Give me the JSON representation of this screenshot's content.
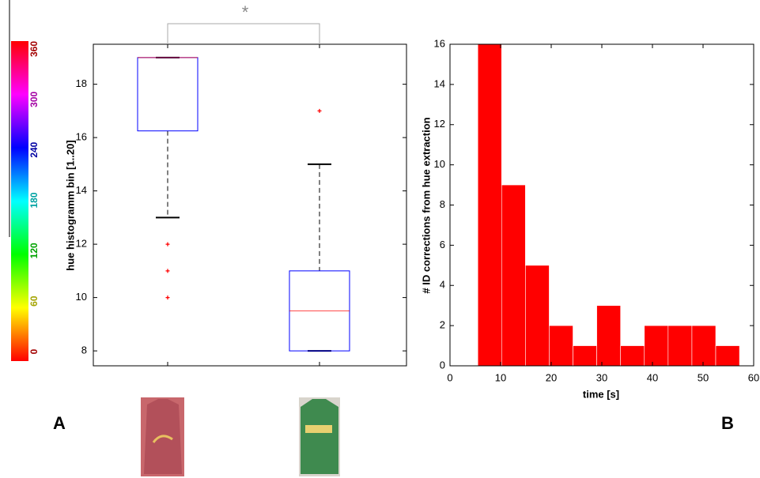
{
  "chart_data": [
    {
      "type": "box",
      "panel_label": "A",
      "ylabel": "hue histogramm bin [1..20]",
      "categories": [
        null,
        null
      ],
      "boxes": [
        {
          "q1": 16.25,
          "median": 19,
          "q3": 19,
          "whisker_low": 13,
          "whisker_high": 19,
          "outliers": [
            12,
            11,
            10
          ]
        },
        {
          "q1": 8,
          "median": 9.5,
          "q3": 11,
          "whisker_low": 8,
          "whisker_high": 15,
          "outliers": [
            17
          ]
        }
      ],
      "box_color": "#0000ff",
      "median_color": "#ff0000",
      "ylim": [
        7.44,
        19.5
      ],
      "yticks": [
        8,
        10,
        12,
        14,
        16,
        18
      ],
      "significance": "*",
      "colorbar": {
        "range": [
          0,
          360
        ],
        "ticks": [
          0,
          60,
          120,
          180,
          240,
          300,
          360
        ]
      }
    },
    {
      "type": "histogram",
      "panel_label": "B",
      "xlabel": "time [s]",
      "ylabel": "# ID corrections from hue extraction",
      "bins": [
        5.5,
        10.2,
        14.9,
        19.6,
        24.3,
        29,
        33.7,
        38.4,
        43.1,
        47.8,
        52.5,
        57.2
      ],
      "values": [
        16,
        9,
        5,
        2,
        1,
        3,
        1,
        2,
        2,
        2,
        1
      ],
      "color": "#ff0000",
      "xlim": [
        0,
        60
      ],
      "xticks": [
        0,
        10,
        20,
        30,
        40,
        50,
        60
      ],
      "ylim": [
        0,
        16
      ],
      "yticks": [
        0,
        2,
        4,
        6,
        8,
        10,
        12,
        14,
        16
      ]
    }
  ]
}
